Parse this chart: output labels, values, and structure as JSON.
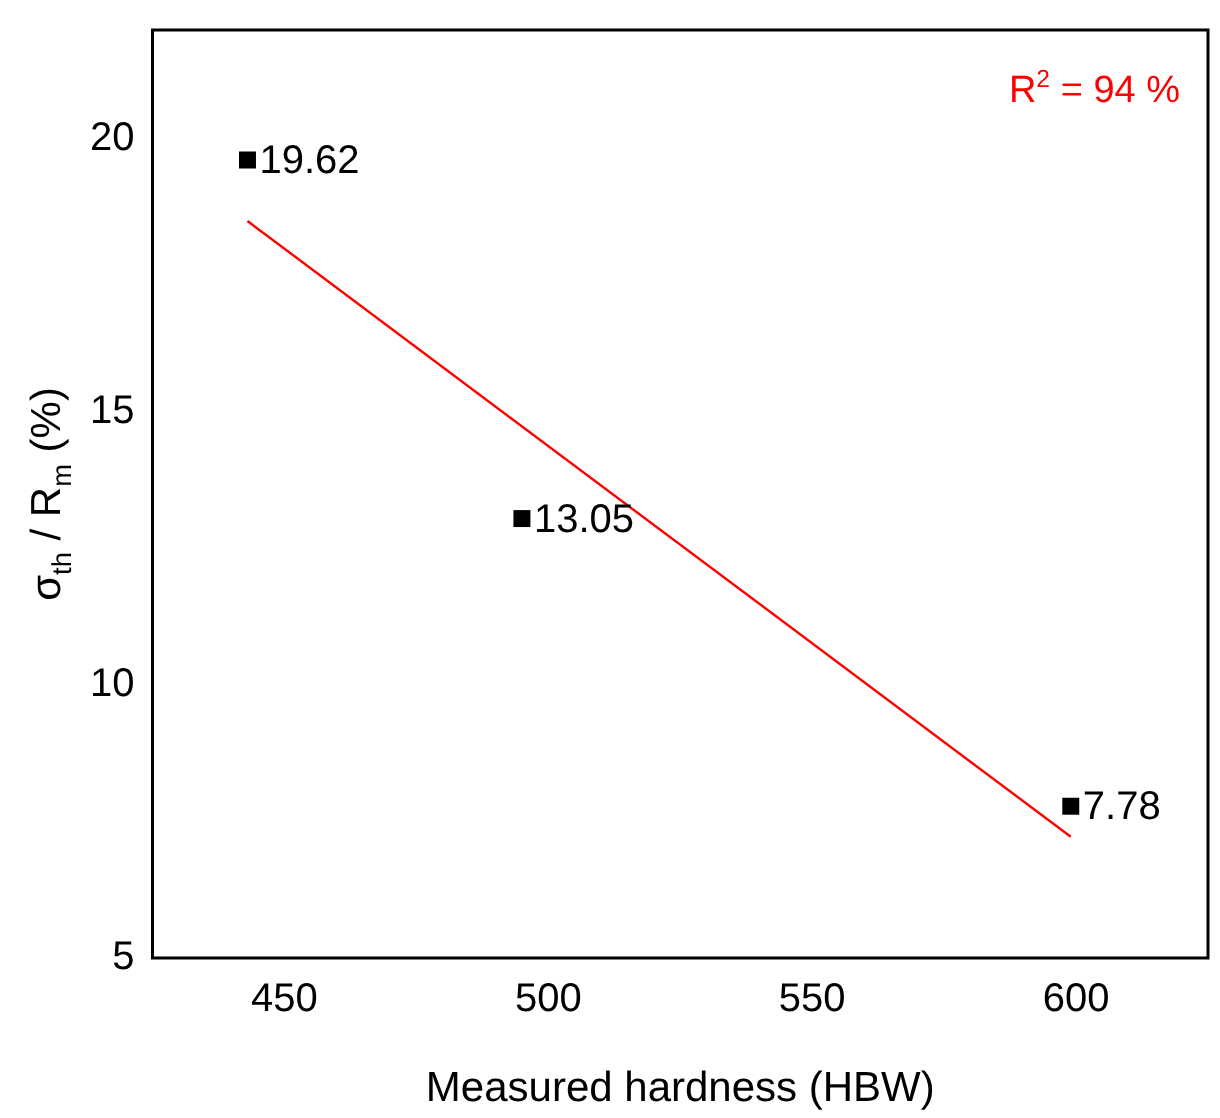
{
  "chart_data": {
    "type": "scatter",
    "xlabel": "Measured hardness (HBW)",
    "ylabel": "σ$_{th}$ / R$_{m}$ (%)",
    "xlim": [
      425,
      625
    ],
    "xticks": [
      450,
      500,
      550,
      600
    ],
    "ylim": [
      5,
      22
    ],
    "yticks": [
      5,
      10,
      15,
      20
    ],
    "grid": false,
    "legend": false,
    "annotations": [
      "R$^{2}$ = 94 %"
    ],
    "series": [
      {
        "color": "#000000",
        "marker": "square",
        "x": [
          443,
          495,
          599
        ],
        "values": [
          19.62,
          13.05,
          7.78
        ],
        "value_labels": [
          "19.62",
          "13.05",
          "7.78"
        ]
      },
      {
        "type": "line",
        "color": "#ff0000",
        "marker": "none",
        "line_style": "solid",
        "x": [
          443,
          599
        ],
        "values": [
          18.5,
          7.22
        ]
      }
    ]
  }
}
